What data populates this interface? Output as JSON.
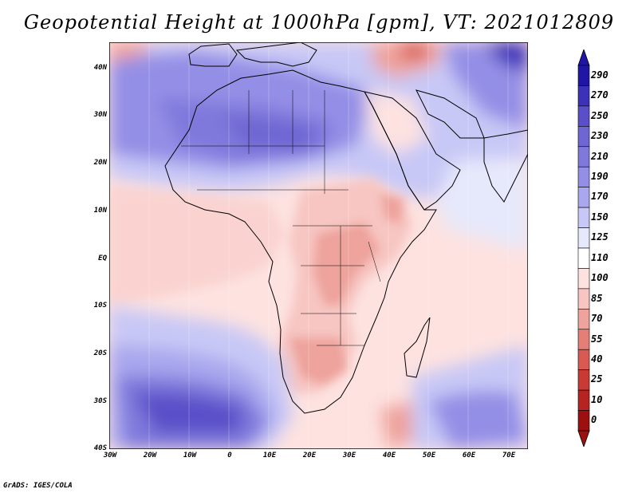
{
  "title": "Geopotential Height at 1000hPa [gpm], VT: 2021012809",
  "credit": "GrADS: IGES/COLA",
  "lat_labels": [
    "40N",
    "30N",
    "20N",
    "10N",
    "EQ",
    "10S",
    "20S",
    "30S",
    "40S"
  ],
  "lon_labels": [
    "30W",
    "20W",
    "10W",
    "0",
    "10E",
    "20E",
    "30E",
    "40E",
    "50E",
    "60E",
    "70E"
  ],
  "colorbar": {
    "levels": [
      "290",
      "270",
      "250",
      "230",
      "210",
      "190",
      "170",
      "150",
      "125",
      "110",
      "100",
      "85",
      "70",
      "55",
      "40",
      "25",
      "10",
      "0"
    ],
    "colors": [
      "#1f16a6",
      "#3c32b8",
      "#5a4fc8",
      "#6e66d2",
      "#7f79dc",
      "#948fe6",
      "#a9a7ee",
      "#c8c8f6",
      "#e6e8fb",
      "#ffffff",
      "#fde2e0",
      "#f7c6c2",
      "#eea39c",
      "#e47e76",
      "#d85a52",
      "#c83a33",
      "#b52420",
      "#9c1010"
    ]
  },
  "map": {
    "lon_range": [
      -30,
      75
    ],
    "lat_range": [
      -40,
      45
    ]
  }
}
